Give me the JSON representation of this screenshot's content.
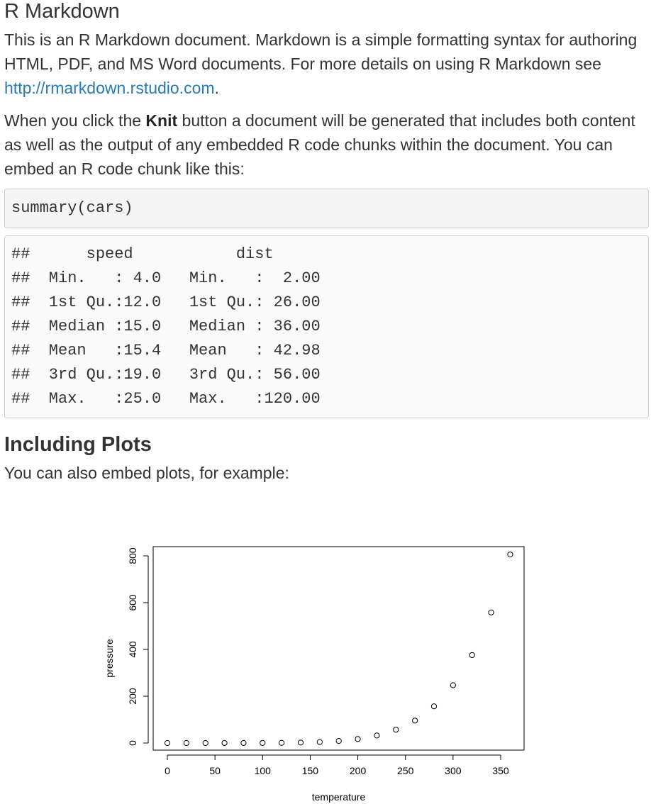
{
  "title": "R Markdown",
  "intro": {
    "text_before_link": "This is an R Markdown document. Markdown is a simple formatting syntax for authoring HTML, PDF, and MS Word documents. For more details on using R Markdown see ",
    "link_text": "http://rmarkdown.rstudio.com",
    "text_after_link": "."
  },
  "knit_paragraph": {
    "before_bold": "When you click the ",
    "bold": "Knit",
    "after_bold": " button a document will be generated that includes both content as well as the output of any embedded R code chunks within the document. You can embed an R code chunk like this:"
  },
  "code_chunk": "summary(cars)",
  "code_output": [
    "##      speed           dist       ",
    "##  Min.   : 4.0   Min.   :  2.00  ",
    "##  1st Qu.:12.0   1st Qu.: 26.00  ",
    "##  Median :15.0   Median : 36.00  ",
    "##  Mean   :15.4   Mean   : 42.98  ",
    "##  3rd Qu.:19.0   3rd Qu.: 56.00  ",
    "##  Max.   :25.0   Max.   :120.00  "
  ],
  "section_heading": "Including Plots",
  "plots_paragraph": "You can also embed plots, for example:",
  "chart_data": {
    "type": "scatter",
    "title": "",
    "xlabel": "temperature",
    "ylabel": "pressure",
    "xlim": [
      0,
      360
    ],
    "ylim": [
      0,
      806
    ],
    "xticks": [
      0,
      50,
      100,
      150,
      200,
      250,
      300,
      350
    ],
    "yticks": [
      0,
      200,
      400,
      600,
      800
    ],
    "grid": false,
    "marker": "open-circle",
    "x": [
      0,
      20,
      40,
      60,
      80,
      100,
      120,
      140,
      160,
      180,
      200,
      220,
      240,
      260,
      280,
      300,
      320,
      340,
      360
    ],
    "y": [
      0.0002,
      0.0012,
      0.006,
      0.03,
      0.09,
      0.27,
      0.75,
      1.85,
      4.2,
      8.8,
      17.3,
      32.1,
      57.0,
      96.0,
      157.0,
      247.0,
      376.0,
      558.0,
      806.0
    ]
  }
}
